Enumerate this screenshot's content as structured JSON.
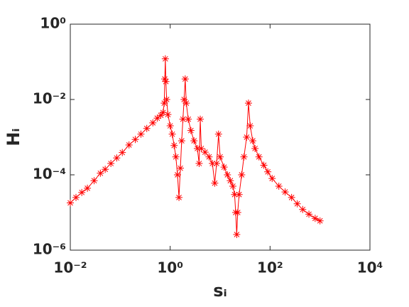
{
  "chart_data": {
    "type": "scatter",
    "xlabel": "sᵢ",
    "ylabel": "Hᵢ",
    "xscale": "log",
    "yscale": "log",
    "marker": "asterisk",
    "color": "#ff0000",
    "connected": true,
    "xlim": [
      0.01,
      10000
    ],
    "ylim": [
      1e-06,
      1
    ],
    "xticks": [
      {
        "value": 0.01,
        "label": "10⁻²"
      },
      {
        "value": 1,
        "label": "10⁰"
      },
      {
        "value": 100,
        "label": "10²"
      },
      {
        "value": 10000,
        "label": "10⁴"
      }
    ],
    "yticks": [
      {
        "value": 1e-06,
        "label": "10⁻⁶"
      },
      {
        "value": 0.0001,
        "label": "10⁻⁴"
      },
      {
        "value": 0.01,
        "label": "10⁻²"
      },
      {
        "value": 1,
        "label": "10⁰"
      }
    ],
    "x": [
      0.01,
      0.013,
      0.017,
      0.022,
      0.03,
      0.04,
      0.05,
      0.065,
      0.085,
      0.11,
      0.15,
      0.2,
      0.26,
      0.34,
      0.45,
      0.55,
      0.65,
      0.72,
      0.76,
      0.78,
      0.8,
      0.82,
      0.85,
      0.9,
      1.0,
      1.1,
      1.2,
      1.3,
      1.4,
      1.5,
      1.6,
      1.7,
      1.8,
      1.9,
      2.0,
      2.1,
      2.3,
      2.6,
      3.0,
      3.5,
      3.8,
      4.0,
      4.2,
      5,
      6,
      7,
      7.8,
      8.5,
      9.3,
      10,
      12,
      14,
      16,
      18,
      19.5,
      20.5,
      21.5,
      22.5,
      24,
      27,
      30,
      34,
      37,
      40,
      45,
      50,
      60,
      75,
      90,
      110,
      150,
      200,
      270,
      350,
      450,
      600,
      800,
      1000
    ],
    "y": [
      1.8e-05,
      2.5e-05,
      3.4e-05,
      4.4e-05,
      7e-05,
      0.00011,
      0.00014,
      0.0002,
      0.00028,
      0.00039,
      0.00062,
      0.00087,
      0.0012,
      0.0017,
      0.0024,
      0.0032,
      0.0038,
      0.0045,
      0.008,
      0.035,
      0.12,
      0.03,
      0.01,
      0.004,
      0.002,
      0.0012,
      0.0006,
      0.0003,
      0.0001,
      2.5e-05,
      0.00015,
      0.0008,
      0.003,
      0.01,
      0.035,
      0.008,
      0.003,
      0.0015,
      0.0008,
      0.0005,
      0.0002,
      0.003,
      0.0005,
      0.0004,
      0.0003,
      0.0002,
      6e-05,
      0.0002,
      0.0012,
      0.0003,
      0.00016,
      0.0001,
      7e-05,
      5e-05,
      3e-05,
      1e-05,
      2.6e-06,
      1e-05,
      3e-05,
      0.0001,
      0.0003,
      0.001,
      0.008,
      0.002,
      0.0008,
      0.0005,
      0.0003,
      0.00018,
      0.00012,
      8e-05,
      5e-05,
      3.5e-05,
      2.5e-05,
      1.7e-05,
      1.2e-05,
      9e-06,
      7e-06,
      6e-06
    ]
  }
}
